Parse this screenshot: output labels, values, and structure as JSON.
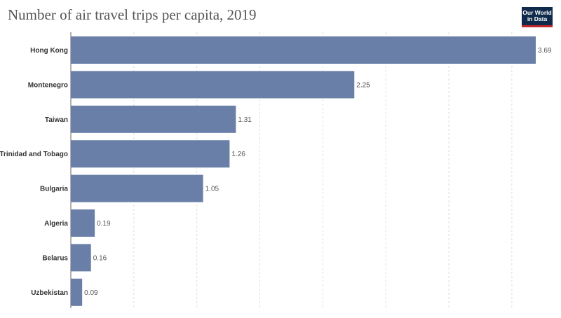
{
  "header": {
    "title": "Number of air travel trips per capita, 2019",
    "logo_line1": "Our World",
    "logo_line2": "in Data"
  },
  "colors": {
    "bar": "#6a7fa8",
    "grid": "#dddddd",
    "axis": "#666666"
  },
  "chart_data": {
    "type": "bar",
    "orientation": "horizontal",
    "title": "Number of air travel trips per capita, 2019",
    "categories": [
      "Hong Kong",
      "Montenegro",
      "Taiwan",
      "Trinidad and Tobago",
      "Bulgaria",
      "Algeria",
      "Belarus",
      "Uzbekistan"
    ],
    "values": [
      3.69,
      2.25,
      1.31,
      1.26,
      1.05,
      0.19,
      0.16,
      0.09
    ],
    "value_labels": [
      "3.69",
      "2.25",
      "1.31",
      "1.26",
      "1.05",
      "0.19",
      "0.16",
      "0.09"
    ],
    "xlim": [
      0,
      3.69
    ],
    "grid_ticks": [
      0.5,
      1,
      1.5,
      2,
      2.5,
      3,
      3.5
    ],
    "grid": true,
    "legend": false
  }
}
